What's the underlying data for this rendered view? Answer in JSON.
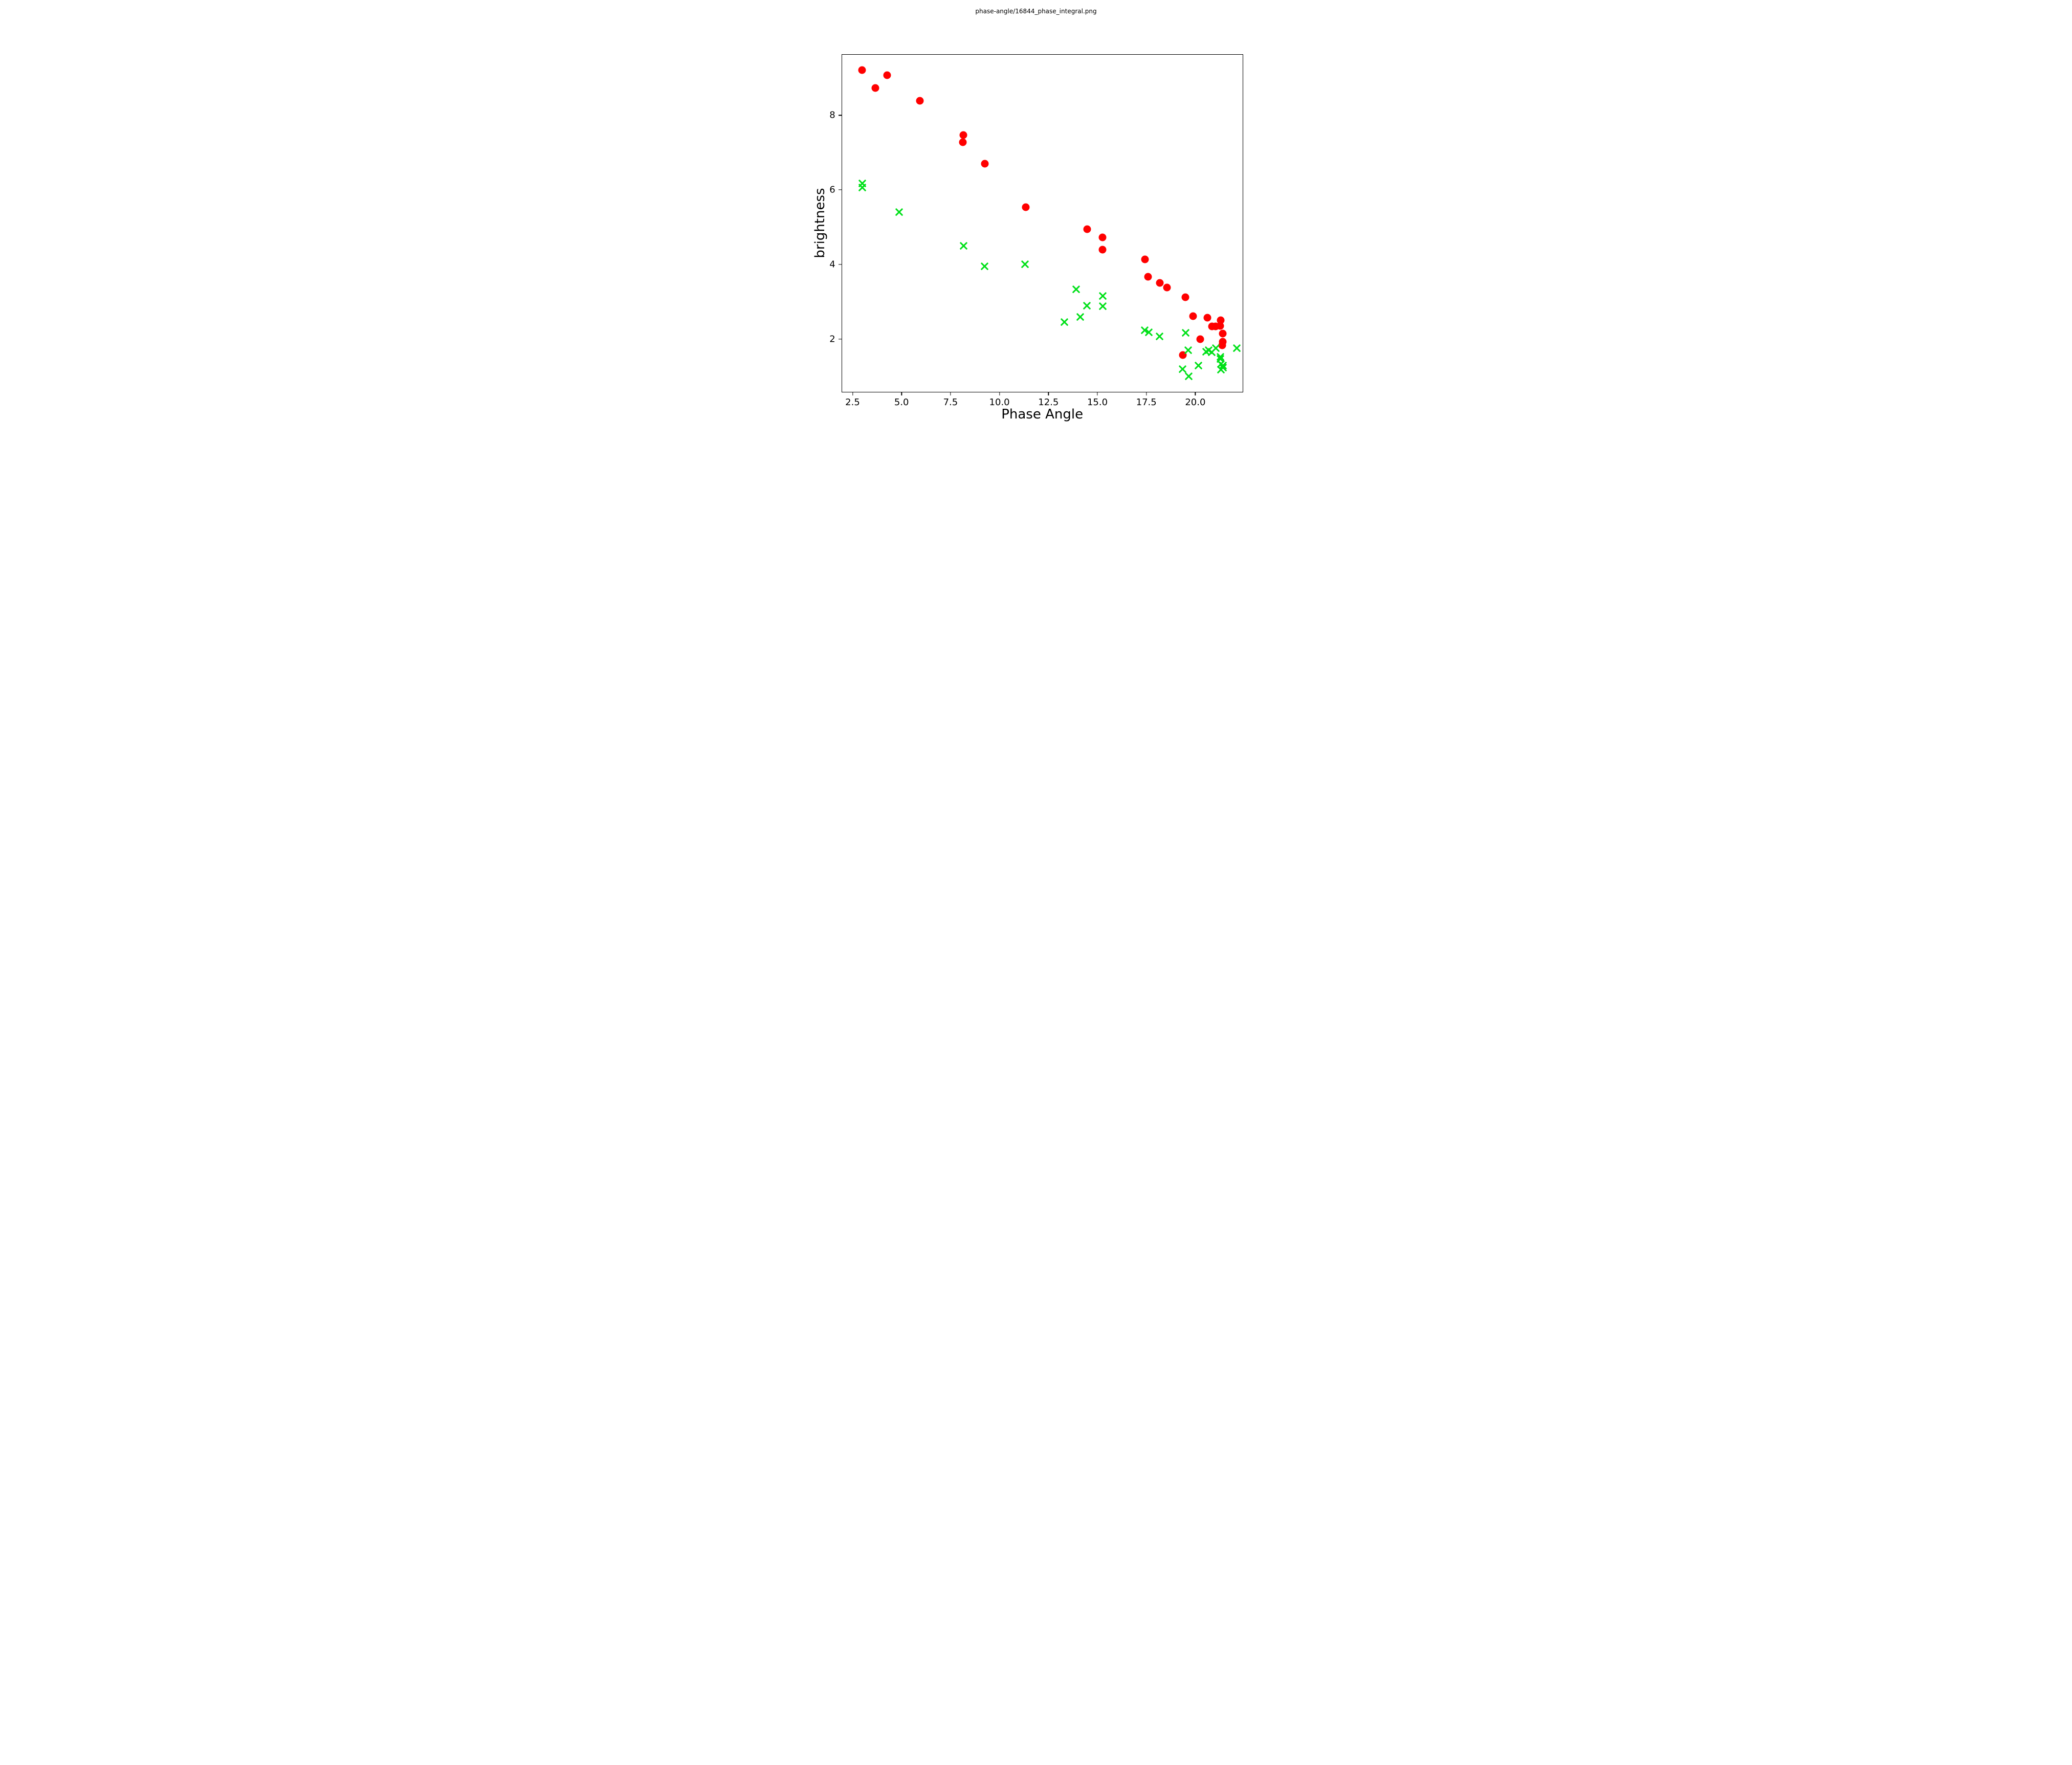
{
  "title": "phase-angle/16844_phase_integral.png",
  "chart_data": {
    "type": "scatter",
    "title": "phase-angle/16844_phase_integral.png",
    "xlabel": "Phase Angle",
    "ylabel": "brightness",
    "xlim": [
      1.93,
      22.44
    ],
    "ylim": [
      0.57,
      9.63
    ],
    "grid": false,
    "legend_position": "none",
    "x_ticks": [
      {
        "value": 2.5,
        "label": "2.5"
      },
      {
        "value": 5.0,
        "label": "5.0"
      },
      {
        "value": 7.5,
        "label": "7.5"
      },
      {
        "value": 10.0,
        "label": "10.0"
      },
      {
        "value": 12.5,
        "label": "12.5"
      },
      {
        "value": 15.0,
        "label": "15.0"
      },
      {
        "value": 17.5,
        "label": "17.5"
      },
      {
        "value": 20.0,
        "label": "20.0"
      }
    ],
    "y_ticks": [
      {
        "value": 2,
        "label": "2"
      },
      {
        "value": 4,
        "label": "4"
      },
      {
        "value": 6,
        "label": "6"
      },
      {
        "value": 8,
        "label": "8"
      }
    ],
    "series": [
      {
        "name": "red-circles",
        "marker": "circle",
        "color": "#ff0000",
        "points": [
          [
            2.96,
            9.23
          ],
          [
            3.65,
            8.74
          ],
          [
            4.23,
            9.08
          ],
          [
            5.92,
            8.4
          ],
          [
            8.14,
            7.48
          ],
          [
            8.13,
            7.28
          ],
          [
            9.25,
            6.7
          ],
          [
            11.33,
            5.53
          ],
          [
            14.48,
            4.95
          ],
          [
            15.26,
            4.72
          ],
          [
            15.27,
            4.39
          ],
          [
            17.43,
            4.13
          ],
          [
            17.61,
            3.67
          ],
          [
            18.2,
            3.5
          ],
          [
            18.58,
            3.37
          ],
          [
            19.52,
            3.12
          ],
          [
            19.91,
            2.61
          ],
          [
            20.64,
            2.56
          ],
          [
            21.31,
            2.49
          ],
          [
            20.87,
            2.33
          ],
          [
            21.06,
            2.33
          ],
          [
            21.29,
            2.34
          ],
          [
            21.42,
            2.13
          ],
          [
            20.26,
            1.99
          ],
          [
            21.43,
            1.92
          ],
          [
            21.39,
            1.82
          ],
          [
            19.39,
            1.56
          ]
        ]
      },
      {
        "name": "green-crosses",
        "marker": "x",
        "color": "#00e019",
        "points": [
          [
            2.96,
            6.17
          ],
          [
            2.96,
            6.07
          ],
          [
            4.86,
            5.41
          ],
          [
            8.17,
            4.49
          ],
          [
            9.23,
            3.95
          ],
          [
            11.31,
            4.0
          ],
          [
            13.31,
            2.44
          ],
          [
            13.91,
            3.32
          ],
          [
            14.13,
            2.58
          ],
          [
            14.47,
            2.88
          ],
          [
            15.28,
            3.15
          ],
          [
            15.28,
            2.87
          ],
          [
            17.42,
            2.22
          ],
          [
            17.63,
            2.17
          ],
          [
            18.19,
            2.06
          ],
          [
            19.53,
            2.15
          ],
          [
            19.66,
            1.69
          ],
          [
            20.56,
            1.65
          ],
          [
            20.71,
            1.69
          ],
          [
            20.86,
            1.63
          ],
          [
            21.07,
            1.74
          ],
          [
            21.3,
            1.51
          ],
          [
            21.3,
            1.45
          ],
          [
            21.34,
            1.32
          ],
          [
            21.43,
            1.27
          ],
          [
            21.44,
            1.22
          ],
          [
            21.32,
            1.16
          ],
          [
            20.17,
            1.28
          ],
          [
            19.38,
            1.18
          ],
          [
            19.69,
            0.98
          ],
          [
            22.14,
            1.74
          ]
        ]
      }
    ]
  }
}
